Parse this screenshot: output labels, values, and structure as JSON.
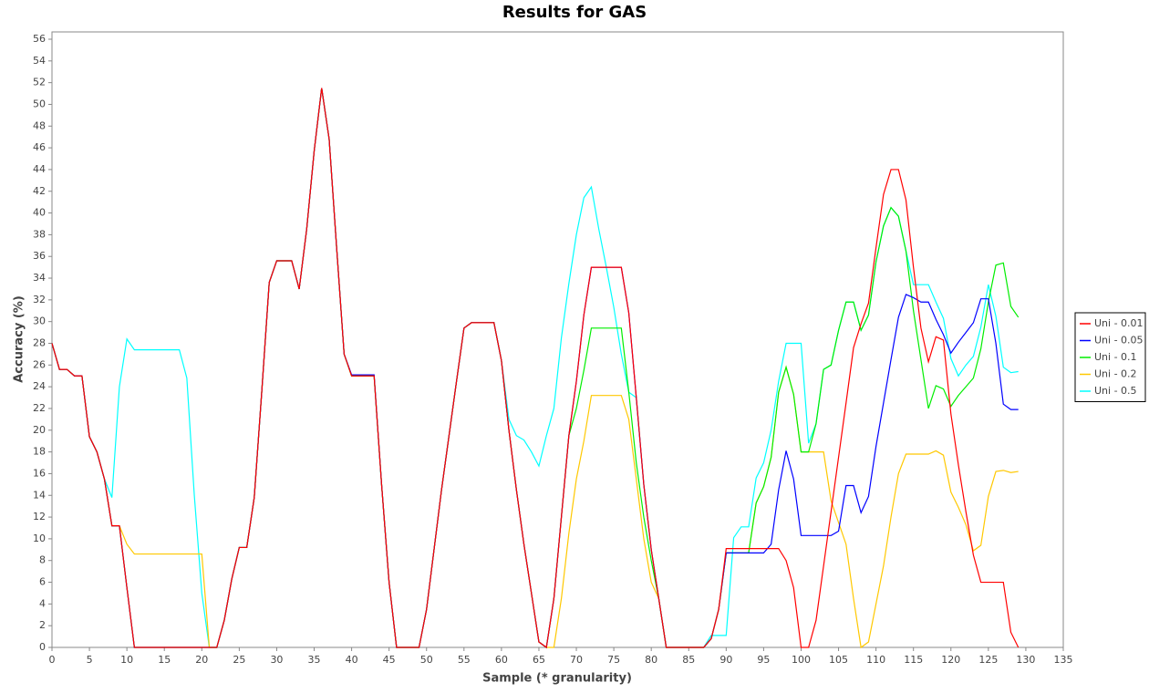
{
  "chart_data": {
    "type": "line",
    "title": "Results for GAS",
    "x_label": "Sample (* granularity)",
    "y_label": "Accuracy (%)",
    "x": [
      0,
      1,
      2,
      3,
      4,
      5,
      6,
      7,
      8,
      9,
      10,
      11,
      12,
      13,
      14,
      15,
      16,
      17,
      18,
      19,
      20,
      21,
      22,
      23,
      24,
      25,
      26,
      27,
      28,
      29,
      30,
      31,
      32,
      33,
      34,
      35,
      36,
      37,
      38,
      39,
      40,
      41,
      42,
      43,
      44,
      45,
      46,
      47,
      48,
      49,
      50,
      51,
      52,
      53,
      54,
      55,
      56,
      57,
      58,
      59,
      60,
      61,
      62,
      63,
      64,
      65,
      66,
      67,
      68,
      69,
      70,
      71,
      72,
      73,
      74,
      75,
      76,
      77,
      78,
      79,
      80,
      81,
      82,
      83,
      84,
      85,
      86,
      87,
      88,
      89,
      90,
      91,
      92,
      93,
      94,
      95,
      96,
      97,
      98,
      99,
      100,
      101,
      102,
      103,
      104,
      105,
      106,
      107,
      108,
      109,
      110,
      111,
      112,
      113,
      114,
      115,
      116,
      117,
      118,
      119,
      120,
      121,
      122,
      123,
      124,
      125,
      126,
      127,
      128,
      129
    ],
    "series": [
      {
        "name": "Uni - 0.01",
        "color": "#ff0000",
        "values": [
          28,
          25.6,
          25.6,
          25,
          25,
          19.4,
          18,
          15.5,
          11.2,
          11.2,
          5.5,
          0,
          0,
          0,
          0,
          0,
          0,
          0,
          0,
          0,
          0,
          0,
          0,
          2.5,
          6.3,
          9.2,
          9.2,
          13.8,
          23.5,
          33.6,
          35.6,
          35.6,
          35.6,
          33,
          38.5,
          45.7,
          51.5,
          46.8,
          36.8,
          27,
          25,
          25,
          25,
          25,
          15,
          6,
          0,
          0,
          0,
          0,
          3.5,
          9,
          14.5,
          19.5,
          24.5,
          29.4,
          29.9,
          29.9,
          29.9,
          29.9,
          26.4,
          20,
          14.5,
          9.5,
          5,
          0.5,
          0,
          4.5,
          12,
          19.5,
          24.5,
          30.6,
          35,
          35,
          35,
          35,
          35,
          30.8,
          23,
          15,
          9,
          4.5,
          0,
          0,
          0,
          0,
          0,
          0,
          0.8,
          3.5,
          9.1,
          9.1,
          9.1,
          9.1,
          9.1,
          9.1,
          9.1,
          9.1,
          8,
          5.5,
          0,
          0,
          2.5,
          7.5,
          12.5,
          17.5,
          22.5,
          27.6,
          29.8,
          31.7,
          36.8,
          41.7,
          44,
          44,
          41.2,
          35,
          29.4,
          26.3,
          28.6,
          28.3,
          21.5,
          16.8,
          12.5,
          8.5,
          6,
          6,
          6,
          6,
          1.4,
          0
        ]
      },
      {
        "name": "Uni - 0.05",
        "color": "#0000ff",
        "values": [
          28,
          25.6,
          25.6,
          25,
          25,
          19.4,
          18,
          15.5,
          11.2,
          11.2,
          5.5,
          0,
          0,
          0,
          0,
          0,
          0,
          0,
          0,
          0,
          0,
          0,
          0,
          2.5,
          6.3,
          9.2,
          9.2,
          13.8,
          23.5,
          33.6,
          35.6,
          35.6,
          35.6,
          33,
          38.5,
          45.7,
          51.5,
          46.8,
          36.8,
          27,
          25.1,
          25.1,
          25.1,
          25.1,
          15,
          6,
          0,
          0,
          0,
          0,
          3.5,
          9,
          14.5,
          19.5,
          24.5,
          29.4,
          29.9,
          29.9,
          29.9,
          29.9,
          26.4,
          20,
          14.5,
          9.5,
          5,
          0.5,
          0,
          4.5,
          12,
          19.5,
          24.5,
          30.6,
          35,
          35,
          35,
          35,
          35,
          30.8,
          23,
          15,
          9,
          4.5,
          0,
          0,
          0,
          0,
          0,
          0,
          0.8,
          3.5,
          8.7,
          8.7,
          8.7,
          8.7,
          8.7,
          8.7,
          9.5,
          14.5,
          18.1,
          15.5,
          10.3,
          10.3,
          10.3,
          10.3,
          10.3,
          10.7,
          14.9,
          14.9,
          12.4,
          13.9,
          18.5,
          22.5,
          26.5,
          30.4,
          32.5,
          32.2,
          31.8,
          31.8,
          30.2,
          28.8,
          27.1,
          28.1,
          29,
          29.9,
          32.1,
          32.1,
          28,
          22.4,
          21.9,
          21.9
        ]
      },
      {
        "name": "Uni - 0.1",
        "color": "#00ee00",
        "values": [
          28,
          25.6,
          25.6,
          25,
          25,
          19.4,
          18,
          15.5,
          11.2,
          11.2,
          5.5,
          0,
          0,
          0,
          0,
          0,
          0,
          0,
          0,
          0,
          0,
          0,
          0,
          2.5,
          6.3,
          9.2,
          9.2,
          13.8,
          23.5,
          33.6,
          35.6,
          35.6,
          35.6,
          33,
          38.5,
          45.7,
          51.5,
          46.8,
          36.8,
          27,
          25,
          25,
          25,
          25,
          15,
          6,
          0,
          0,
          0,
          0,
          3.5,
          9,
          14.5,
          19.5,
          24.5,
          29.4,
          29.9,
          29.9,
          29.9,
          29.9,
          26.4,
          20,
          14.5,
          9.5,
          5,
          0.5,
          0,
          4.5,
          12,
          19.5,
          22,
          25.5,
          29.4,
          29.4,
          29.4,
          29.4,
          29.4,
          23.5,
          17,
          12,
          8,
          4.5,
          0,
          0,
          0,
          0,
          0,
          0,
          0.8,
          3.5,
          8.7,
          8.7,
          8.7,
          8.7,
          13.3,
          14.8,
          17.5,
          23.5,
          25.8,
          23.3,
          18,
          18,
          20.6,
          25.6,
          26,
          29.2,
          31.8,
          31.8,
          29.2,
          30.6,
          35.5,
          38.8,
          40.5,
          39.7,
          36.5,
          31,
          26.5,
          22,
          24.1,
          23.8,
          22.2,
          23.2,
          24,
          24.8,
          27.5,
          31.8,
          35.2,
          35.4,
          31.4,
          30.4
        ]
      },
      {
        "name": "Uni - 0.2",
        "color": "#ffc800",
        "values": [
          28,
          25.6,
          25.6,
          25,
          25,
          19.4,
          18,
          15.5,
          11.2,
          11.2,
          9.5,
          8.6,
          8.6,
          8.6,
          8.6,
          8.6,
          8.6,
          8.6,
          8.6,
          8.6,
          8.6,
          0,
          0,
          2.5,
          6.3,
          9.2,
          9.2,
          13.8,
          23.5,
          33.6,
          35.6,
          35.6,
          35.6,
          33,
          38.5,
          45.7,
          51.5,
          46.8,
          36.8,
          27,
          25,
          25,
          25,
          25,
          15,
          6,
          0,
          0,
          0,
          0,
          3.5,
          9,
          14.5,
          19.5,
          24.5,
          29.4,
          29.9,
          29.9,
          29.9,
          29.9,
          26.4,
          20,
          14.5,
          9.5,
          5,
          0.5,
          0,
          0,
          4.5,
          10.5,
          15.5,
          19,
          23.2,
          23.2,
          23.2,
          23.2,
          23.2,
          21,
          15.5,
          10,
          6,
          4.5,
          0,
          0,
          0,
          0,
          0,
          0,
          0.8,
          3.5,
          8.7,
          8.7,
          8.7,
          8.7,
          13.3,
          14.8,
          17.5,
          23.5,
          25.8,
          23.3,
          18,
          18,
          18,
          18,
          13.5,
          11.5,
          9.5,
          4.5,
          0,
          0.5,
          4,
          7.5,
          12,
          16,
          17.8,
          17.8,
          17.8,
          17.8,
          18.1,
          17.7,
          14.3,
          12.9,
          11.3,
          8.9,
          9.4,
          13.9,
          16.2,
          16.3,
          16.1,
          16.2
        ]
      },
      {
        "name": "Uni - 0.5",
        "color": "#00ffff",
        "values": [
          28,
          25.6,
          25.6,
          25,
          25,
          19.4,
          18,
          15.5,
          13.8,
          24,
          28.4,
          27.4,
          27.4,
          27.4,
          27.4,
          27.4,
          27.4,
          27.4,
          24.8,
          14,
          5,
          0,
          0,
          2.5,
          6.3,
          9.2,
          9.2,
          13.8,
          23.5,
          33.6,
          35.6,
          35.6,
          35.6,
          33,
          38.5,
          45.7,
          51.5,
          46.8,
          36.8,
          27,
          25,
          25,
          25,
          25,
          15,
          6,
          0,
          0,
          0,
          0,
          3.5,
          9,
          14.5,
          19.5,
          24.5,
          29.4,
          29.9,
          29.9,
          29.9,
          29.9,
          26.4,
          21,
          19.5,
          19.1,
          18,
          16.7,
          19.5,
          22,
          28.5,
          33.5,
          38,
          41.4,
          42.4,
          38.5,
          35,
          31.3,
          27,
          23.5,
          23,
          15,
          9,
          4.5,
          0,
          0,
          0,
          0,
          0,
          0,
          1.1,
          1.1,
          1.1,
          10.1,
          11.1,
          11.1,
          15.6,
          17,
          20,
          24.5,
          28,
          28,
          28,
          18.8,
          20.6,
          25.6,
          26,
          29.2,
          31.8,
          31.8,
          29.2,
          30.6,
          35.5,
          38.8,
          40.5,
          39.7,
          36.5,
          33.4,
          33.4,
          33.4,
          31.8,
          30.3,
          26.6,
          25,
          26,
          26.8,
          29.5,
          33.4,
          30.5,
          25.8,
          25.3,
          25.4
        ]
      }
    ],
    "xlim": [
      0,
      135
    ],
    "ylim": [
      0,
      56
    ],
    "xticks": [
      0,
      5,
      10,
      15,
      20,
      25,
      30,
      35,
      40,
      45,
      50,
      55,
      60,
      65,
      70,
      75,
      80,
      85,
      90,
      95,
      100,
      105,
      110,
      115,
      120,
      125,
      130,
      135
    ],
    "yticks": [
      0,
      2,
      4,
      6,
      8,
      10,
      12,
      14,
      16,
      18,
      20,
      22,
      24,
      26,
      28,
      30,
      32,
      34,
      36,
      38,
      40,
      42,
      44,
      46,
      48,
      50,
      52,
      54,
      56
    ],
    "legend": "right"
  }
}
